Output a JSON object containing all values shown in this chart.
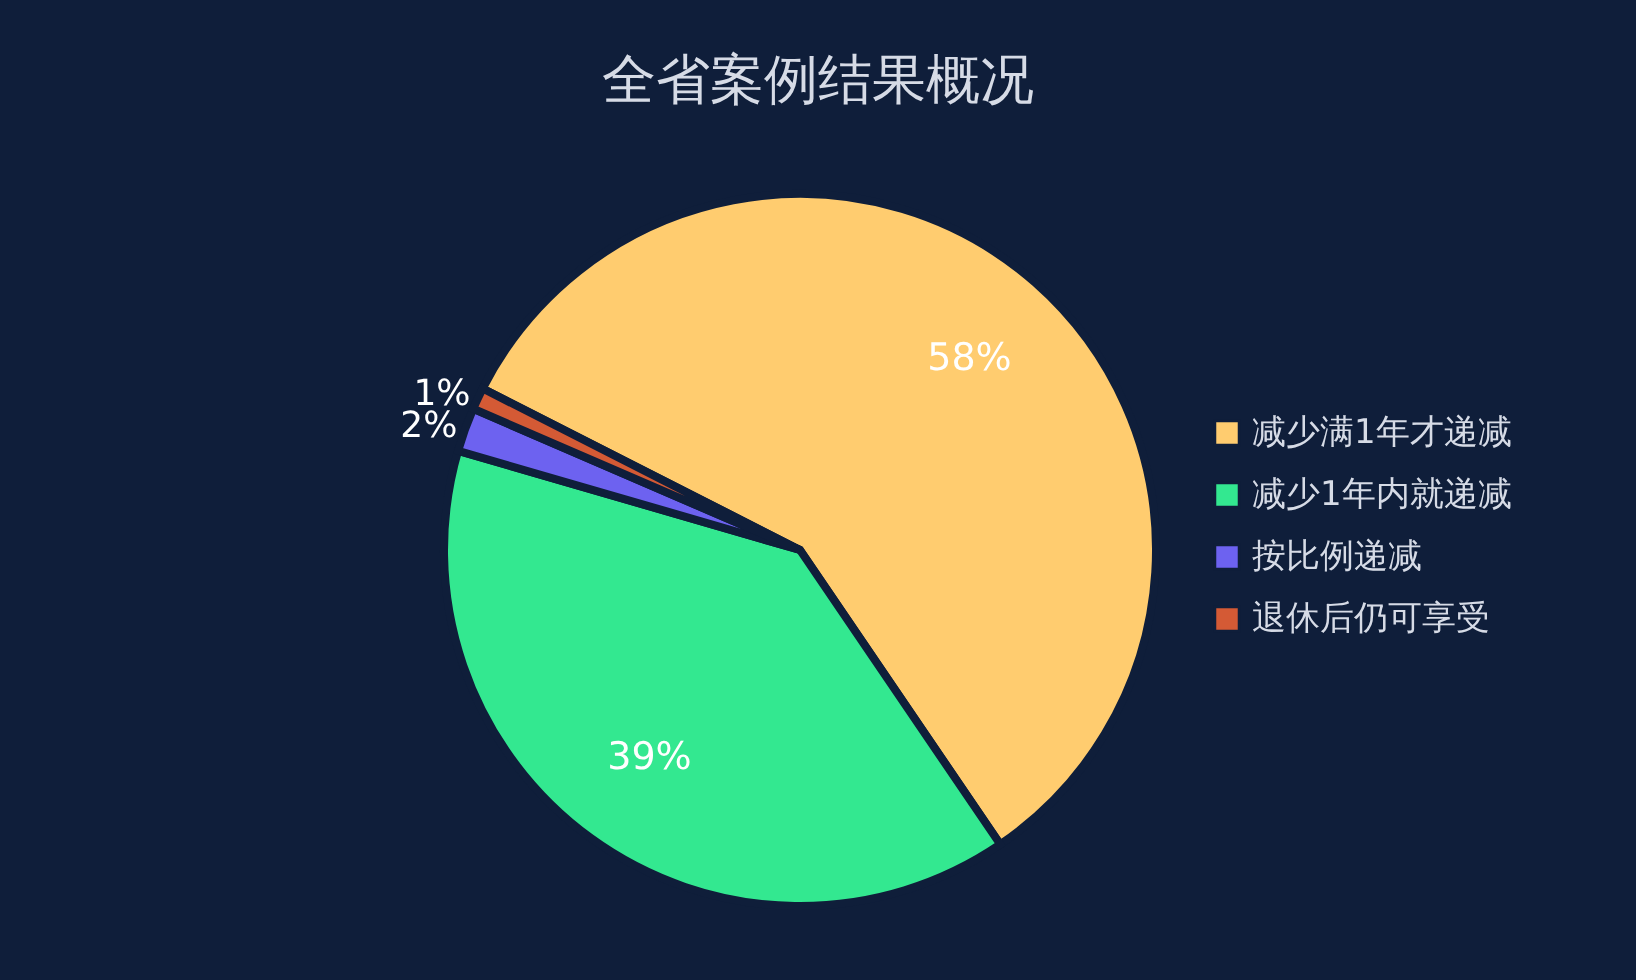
{
  "chart_data": {
    "type": "pie",
    "title": "全省案例结果概况",
    "categories": [
      "减少满1年才递减",
      "减少1年内就递减",
      "按比例递减",
      "退休后仍可享受"
    ],
    "values": [
      58,
      39,
      2,
      1
    ],
    "colors": [
      "#ffcc6f",
      "#33e890",
      "#6d62f0",
      "#d45a35"
    ],
    "value_labels": [
      "58%",
      "39%",
      "2%",
      "1%"
    ],
    "legend": "right"
  }
}
